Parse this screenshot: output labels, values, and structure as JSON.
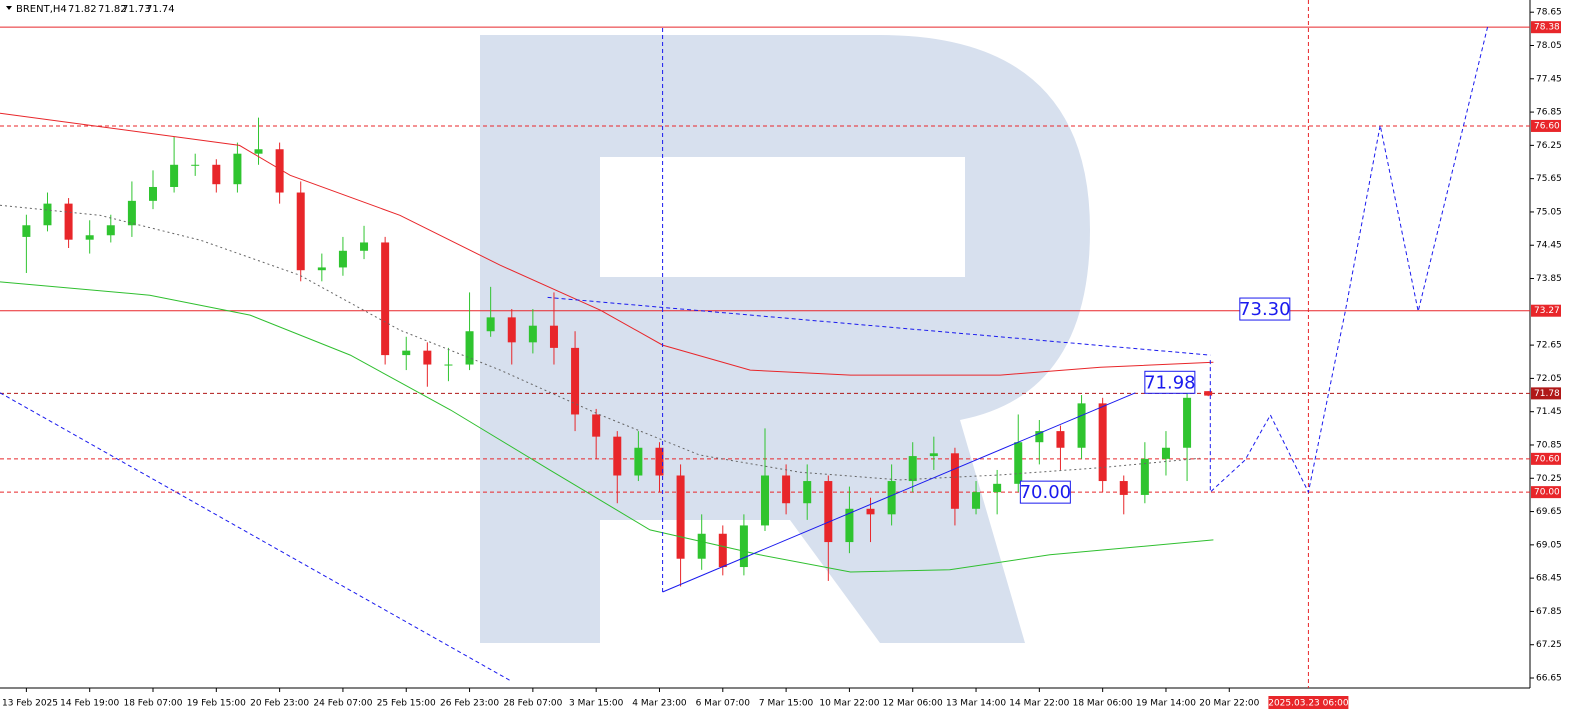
{
  "chart_data": {
    "type": "candlestick",
    "title": "BRENT,H4",
    "quote": [
      71.82,
      71.82,
      71.73,
      71.74
    ],
    "up_color": "#2fc42f",
    "down_color": "#e8262a",
    "xlim": [
      -2.5,
      142.5
    ],
    "ylim": [
      66.47,
      78.87
    ],
    "x": [
      0,
      2,
      4,
      6,
      8,
      10,
      12,
      14,
      16,
      18,
      20,
      22,
      24,
      26,
      28,
      30,
      32,
      34,
      36,
      38,
      40,
      42,
      44,
      46,
      48,
      50,
      52,
      54,
      56,
      58,
      60,
      62,
      64,
      66,
      68,
      70,
      72,
      74,
      76,
      78,
      80,
      82,
      84,
      86,
      88,
      90,
      92,
      94,
      96,
      98,
      100,
      102,
      104,
      106,
      108,
      110,
      112
    ],
    "open": [
      74.6,
      74.81,
      75.2,
      74.55,
      74.63,
      74.81,
      75.25,
      75.5,
      75.9,
      75.9,
      75.55,
      76.1,
      76.18,
      75.4,
      74.0,
      74.05,
      74.35,
      74.5,
      72.47,
      72.55,
      72.3,
      72.3,
      72.9,
      73.15,
      72.7,
      73.0,
      72.6,
      71.4,
      71.0,
      70.3,
      70.8,
      70.3,
      68.8,
      69.25,
      68.65,
      69.4,
      70.3,
      69.8,
      70.2,
      69.1,
      69.7,
      69.6,
      70.2,
      70.65,
      70.7,
      69.7,
      70.0,
      70.15,
      70.9,
      71.1,
      70.8,
      71.6,
      70.2,
      69.95,
      70.6,
      70.8,
      71.82
    ],
    "high": [
      75.0,
      75.4,
      75.3,
      74.9,
      75.0,
      75.6,
      75.8,
      76.4,
      76.1,
      76.0,
      76.3,
      76.75,
      76.3,
      75.6,
      74.3,
      74.6,
      74.8,
      74.6,
      72.8,
      72.7,
      72.6,
      73.6,
      73.7,
      73.3,
      73.3,
      73.6,
      72.9,
      71.5,
      71.1,
      71.1,
      70.9,
      70.5,
      69.6,
      69.4,
      69.6,
      71.15,
      70.5,
      70.5,
      70.3,
      70.1,
      69.9,
      70.5,
      70.9,
      71.0,
      70.8,
      70.2,
      70.4,
      71.4,
      71.3,
      71.2,
      71.75,
      71.7,
      70.3,
      70.9,
      71.1,
      71.95,
      71.82
    ],
    "low": [
      73.95,
      74.7,
      74.4,
      74.3,
      74.5,
      74.6,
      75.1,
      75.4,
      75.7,
      75.4,
      75.4,
      75.9,
      75.2,
      73.8,
      73.8,
      73.9,
      74.2,
      72.3,
      72.2,
      71.9,
      72.0,
      72.2,
      72.8,
      72.3,
      72.5,
      72.3,
      71.1,
      70.6,
      69.8,
      70.2,
      70.0,
      68.3,
      68.6,
      68.5,
      68.5,
      69.3,
      69.6,
      69.5,
      68.4,
      68.9,
      69.1,
      69.4,
      70.0,
      70.4,
      69.4,
      69.6,
      69.6,
      70.0,
      70.5,
      70.4,
      70.6,
      70.0,
      69.6,
      69.8,
      70.3,
      70.2,
      71.73
    ],
    "close": [
      74.81,
      75.2,
      74.55,
      74.63,
      74.81,
      75.25,
      75.5,
      75.9,
      75.9,
      75.55,
      76.1,
      76.18,
      75.4,
      74.0,
      74.05,
      74.35,
      74.5,
      72.47,
      72.55,
      72.3,
      72.3,
      72.9,
      73.15,
      72.7,
      73.0,
      72.6,
      71.4,
      71.0,
      70.3,
      70.8,
      70.3,
      68.8,
      69.25,
      68.65,
      69.4,
      70.3,
      69.8,
      70.2,
      69.1,
      69.7,
      69.6,
      70.2,
      70.65,
      70.7,
      69.7,
      70.0,
      70.15,
      70.9,
      71.1,
      70.8,
      71.6,
      70.2,
      69.95,
      70.6,
      70.8,
      71.7,
      71.74
    ],
    "yticks": [
      78.65,
      78.05,
      77.45,
      76.85,
      76.25,
      75.65,
      75.05,
      74.45,
      73.85,
      72.65,
      72.05,
      71.45,
      70.85,
      70.25,
      69.65,
      69.05,
      68.45,
      67.85,
      67.25,
      66.65
    ],
    "xticks": [
      {
        "value": 0,
        "label": "13 Feb 2025"
      },
      {
        "value": 6,
        "label": "14 Feb 19:00"
      },
      {
        "value": 12,
        "label": "18 Feb 07:00"
      },
      {
        "value": 18,
        "label": "19 Feb 15:00"
      },
      {
        "value": 24,
        "label": "20 Feb 23:00"
      },
      {
        "value": 30,
        "label": "24 Feb 07:00"
      },
      {
        "value": 36,
        "label": "25 Feb 15:00"
      },
      {
        "value": 42,
        "label": "26 Feb 23:00"
      },
      {
        "value": 48,
        "label": "28 Feb 07:00"
      },
      {
        "value": 54,
        "label": "3 Mar 15:00"
      },
      {
        "value": 60,
        "label": "4 Mar 23:00"
      },
      {
        "value": 66,
        "label": "6 Mar 07:00"
      },
      {
        "value": 72,
        "label": "7 Mar 15:00"
      },
      {
        "value": 78,
        "label": "10 Mar 22:00"
      },
      {
        "value": 84,
        "label": "12 Mar 06:00"
      },
      {
        "value": 90,
        "label": "13 Mar 14:00"
      },
      {
        "value": 96,
        "label": "14 Mar 22:00"
      },
      {
        "value": 102,
        "label": "18 Mar 06:00"
      },
      {
        "value": 108,
        "label": "19 Mar 14:00"
      },
      {
        "value": 114,
        "label": "20 Mar 22:00"
      }
    ],
    "cursor": {
      "value": 121.5,
      "label": "2025.03.23 06:00",
      "color": "#e8262a"
    },
    "levels": [
      {
        "value": 78.38,
        "label": "78.38",
        "style": "solid",
        "color": "#e8262a"
      },
      {
        "value": 76.6,
        "label": "76.60",
        "style": "dashed",
        "color": "#e8262a"
      },
      {
        "value": 73.27,
        "label": "73.27",
        "style": "solid",
        "color": "#e8262a"
      },
      {
        "value": 71.78,
        "label": "71.78",
        "style": "dashed",
        "color": "#b01818"
      },
      {
        "value": 70.6,
        "label": "70.60",
        "style": "dashed",
        "color": "#e8262a"
      },
      {
        "value": 70,
        "label": "70.00",
        "style": "dashed",
        "color": "#e8262a"
      }
    ],
    "lines": [
      {
        "color": "#e8262a",
        "style": "solid",
        "x": [
          -2.5,
          20.2,
          25,
          35.4,
          44.9,
          54.4,
          60.3,
          68.6,
          78.1,
          92.3,
          101.8,
          112.5
        ],
        "values": [
          76.83,
          76.25,
          75.71,
          74.99,
          74.09,
          73.28,
          72.65,
          72.2,
          72.11,
          72.11,
          72.25,
          72.34
        ]
      },
      {
        "color": "#2fbf2f",
        "style": "solid",
        "x": [
          -2.5,
          11.7,
          21.2,
          30.7,
          40.2,
          49.6,
          59.1,
          69.5,
          78.1,
          87.5,
          97,
          112.5
        ],
        "values": [
          73.79,
          73.55,
          73.19,
          72.47,
          71.48,
          70.4,
          69.32,
          68.87,
          68.56,
          68.6,
          68.87,
          69.14
        ]
      },
      {
        "color": "#666666",
        "style": "dotted",
        "x": [
          -2.5,
          6.97,
          16.5,
          25.9,
          35.4,
          44.9,
          54.4,
          63.8,
          73.3,
          82.8,
          92.3,
          101.8,
          111.2
        ],
        "values": [
          75.17,
          74.99,
          74.54,
          73.91,
          72.92,
          72.2,
          71.39,
          70.67,
          70.36,
          70.22,
          70.31,
          70.44,
          70.61
        ]
      },
      {
        "color": "#1a1aee",
        "style": "solid",
        "x": [
          60.3,
          105.1
        ],
        "values": [
          68.2,
          71.79
        ]
      },
      {
        "color": "#1a1aee",
        "style": "dashed",
        "x": [
          49.4,
          112.2
        ],
        "values": [
          73.51,
          72.47
        ]
      },
      {
        "color": "#1a1aee",
        "style": "dashed",
        "x": [
          -2.5,
          45.8
        ],
        "values": [
          71.79,
          66.61
        ]
      },
      {
        "color": "#1a1aee",
        "style": "dashed",
        "x": [
          60.3,
          60.3
        ],
        "values": [
          68.2,
          78.38
        ]
      },
      {
        "color": "#1a1aee",
        "style": "dashed",
        "x": [
          112.2,
          112.2,
          115.5,
          117.9,
          121.5,
          125,
          128.3,
          131.9,
          138.5
        ],
        "values": [
          72.38,
          70,
          70.58,
          71.39,
          70,
          73.26,
          76.61,
          73.26,
          78.4
        ]
      }
    ],
    "annotations": [
      {
        "x": 106,
        "value": 71.98,
        "label": "71.98"
      },
      {
        "x": 94.2,
        "value": 70,
        "label": "70.00"
      },
      {
        "x": 115,
        "value": 73.3,
        "label": "73.30"
      }
    ]
  }
}
